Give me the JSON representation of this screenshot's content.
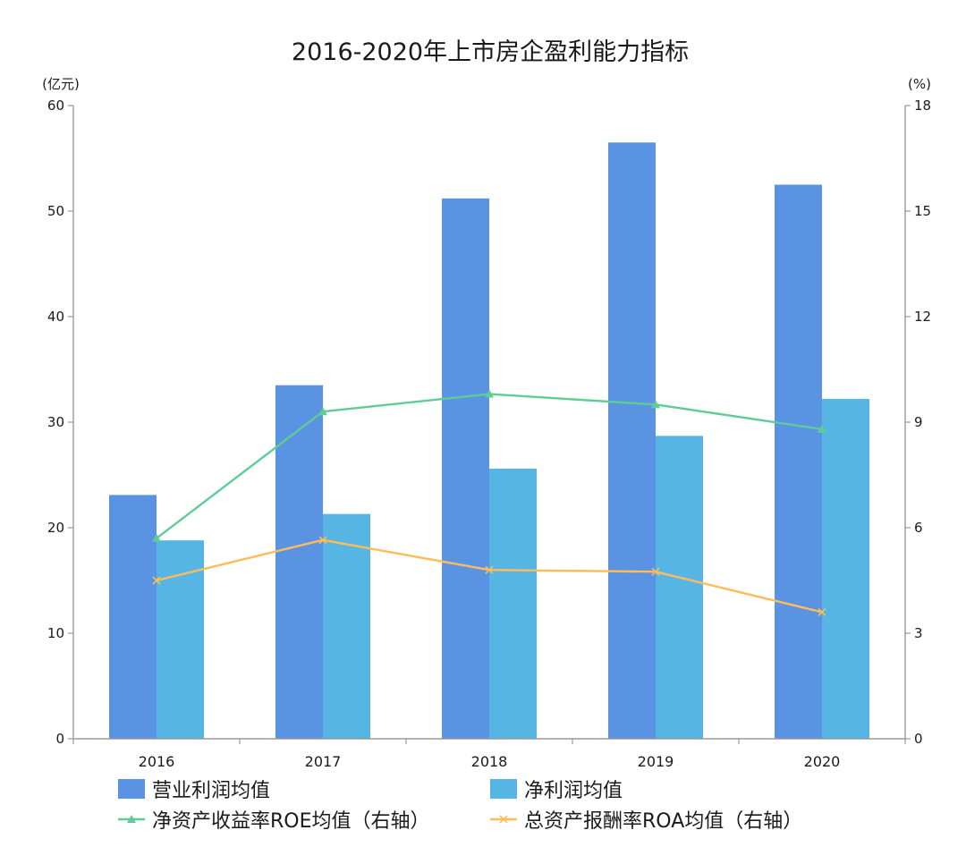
{
  "chart_data": {
    "type": "bar",
    "title": "2016-2020年上市房企盈利能力指标",
    "left_unit_label": "(亿元)",
    "right_unit_label": "(%)",
    "categories": [
      "2016",
      "2017",
      "2018",
      "2019",
      "2020"
    ],
    "left_ylim": [
      0,
      60
    ],
    "left_ticks": [
      0,
      10,
      20,
      30,
      40,
      50,
      60
    ],
    "right_ylim": [
      0,
      18
    ],
    "right_ticks": [
      0,
      3,
      6,
      9,
      12,
      15,
      18
    ],
    "grid": false,
    "legend_position": "bottom",
    "series": [
      {
        "name": "营业利润均值",
        "type": "bar",
        "axis": "left",
        "color": "#5b93e3",
        "values": [
          23.1,
          33.5,
          51.2,
          56.5,
          52.5
        ]
      },
      {
        "name": "净利润均值",
        "type": "bar",
        "axis": "left",
        "color": "#56b5e3",
        "values": [
          18.8,
          21.3,
          25.6,
          28.7,
          32.2
        ]
      },
      {
        "name": "净资产收益率ROE均值（右轴）",
        "type": "line",
        "marker": "triangle",
        "axis": "right",
        "color": "#5fcc96",
        "values": [
          5.7,
          9.3,
          9.8,
          9.5,
          8.8
        ]
      },
      {
        "name": "总资产报酬率ROA均值（右轴）",
        "type": "line",
        "marker": "cross",
        "axis": "right",
        "color": "#ffbc5a",
        "values": [
          4.5,
          5.65,
          4.8,
          4.75,
          3.6
        ]
      }
    ]
  }
}
